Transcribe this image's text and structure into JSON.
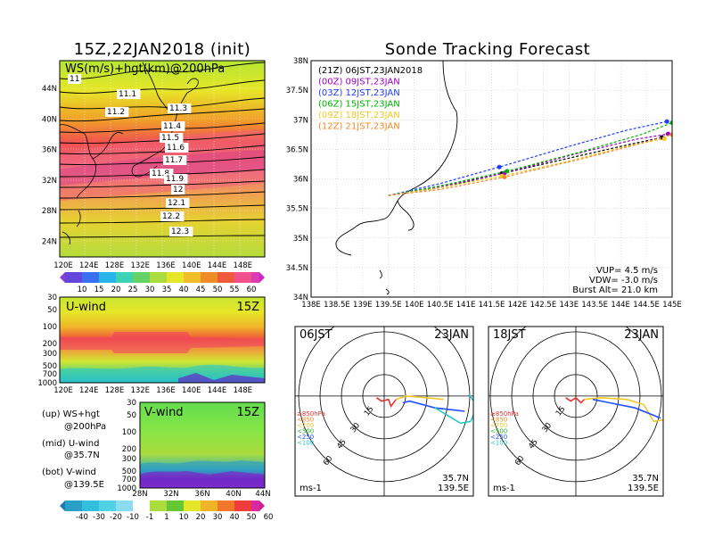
{
  "colors": {
    "accent": "#000000"
  },
  "map_panel": {
    "title": "15Z,22JAN2018 (init)",
    "label": "WS(m/s)+hgt(km)@200hPa",
    "x_ticks": [
      "120E",
      "124E",
      "128E",
      "132E",
      "136E",
      "140E",
      "144E",
      "148E"
    ],
    "y_ticks": [
      "44N",
      "40N",
      "36N",
      "32N",
      "28N",
      "24N"
    ],
    "contour_labels": [
      "11",
      "11.1",
      "11.2",
      "11.3",
      "11.4",
      "11.5",
      "11.6",
      "11.7",
      "11.8",
      "11.9",
      "12",
      "12.1",
      "12.2",
      "12.3"
    ],
    "colorbar_ticks": [
      "10",
      "15",
      "20",
      "25",
      "30",
      "35",
      "40",
      "45",
      "50",
      "55",
      "60"
    ]
  },
  "u_panel": {
    "label": "U-wind",
    "time": "15Z",
    "y_ticks": [
      "30",
      "50",
      "100",
      "200",
      "300",
      "500",
      "700",
      "1000"
    ],
    "x_ticks": [
      "120E",
      "124E",
      "128E",
      "132E",
      "136E",
      "140E",
      "144E",
      "148E"
    ]
  },
  "v_panel": {
    "label": "V-wind",
    "time": "15Z",
    "y_ticks": [
      "30",
      "50",
      "100",
      "200",
      "300",
      "500",
      "700",
      "1000"
    ],
    "x_ticks": [
      "28N",
      "32N",
      "36N",
      "40N",
      "44N"
    ],
    "colorbar_ticks": [
      "-40",
      "-30",
      "-20",
      "-10",
      "-1",
      "1",
      "10",
      "20",
      "30",
      "40",
      "50",
      "60"
    ]
  },
  "legend_text": {
    "line1": "(up) WS+hgt",
    "line2": "@200hPa",
    "line3": "(mid) U-wind",
    "line4": "@35.7N",
    "line5": "(bot) V-wind",
    "line6": "@139.5E"
  },
  "track_panel": {
    "title": "Sonde Tracking Forecast",
    "x_ticks": [
      "138E",
      "138.5E",
      "139E",
      "139.5E",
      "140E",
      "140.5E",
      "141E",
      "141.5E",
      "142E",
      "142.5E",
      "143E",
      "143.5E",
      "144E",
      "144.5E",
      "145E"
    ],
    "y_ticks": [
      "38N",
      "37.5N",
      "37N",
      "36.5N",
      "36N",
      "35.5N",
      "35N",
      "34.5N",
      "34N"
    ],
    "legend": [
      {
        "label": "(21Z) 06JST,23JAN2018",
        "color": "#000000"
      },
      {
        "label": "(00Z) 09JST,23JAN",
        "color": "#a000c8"
      },
      {
        "label": "(03Z) 12JST,23JAN",
        "color": "#1e3cff"
      },
      {
        "label": "(06Z) 15JST,23JAN",
        "color": "#00b400"
      },
      {
        "label": "(09Z) 18JST,23JAN",
        "color": "#f0c828"
      },
      {
        "label": "(12Z) 21JST,23JAN",
        "color": "#f08c28"
      }
    ],
    "vup": "VUP= 4.5 m/s",
    "vdw": "VDW= -3.0 m/s",
    "burst": "Burst Alt= 21.0 km"
  },
  "hodographs": [
    {
      "left": "06JST",
      "right": "23JAN",
      "unit": "ms-1",
      "lat": "35.7N",
      "lon": "139.5E",
      "rings": [
        "15",
        "30",
        "45",
        "60"
      ],
      "levels": [
        "≥850hPa",
        "<850",
        "<700",
        "<500",
        "<250",
        "<100"
      ]
    },
    {
      "left": "18JST",
      "right": "23JAN",
      "unit": "ms-1",
      "lat": "35.7N",
      "lon": "139.5E",
      "rings": [
        "15",
        "30",
        "45",
        "60"
      ],
      "levels": [
        "≥850hPa",
        "<850",
        "<700",
        "<500",
        "<250",
        "<100"
      ]
    }
  ],
  "chart_data": [
    {
      "type": "scatter",
      "title": "Sonde Tracking Forecast",
      "xlim": [
        138,
        145
      ],
      "ylim": [
        34,
        38
      ],
      "launch": {
        "x": 139.5,
        "y": 35.72
      },
      "series": [
        {
          "name": "(21Z) 06JST,23JAN2018",
          "color": "#000000",
          "x": [
            139.5,
            140.5,
            141.7,
            143.0,
            144.0,
            144.8
          ],
          "y": [
            35.72,
            35.85,
            36.09,
            36.35,
            36.55,
            36.7
          ]
        },
        {
          "name": "(00Z) 09JST,23JAN",
          "color": "#a000c8",
          "x": [
            139.5,
            140.5,
            141.75,
            143.2,
            144.3,
            144.92
          ],
          "y": [
            35.72,
            35.87,
            36.1,
            36.44,
            36.67,
            36.76
          ]
        },
        {
          "name": "(03Z) 12JST,23JAN",
          "color": "#1e3cff",
          "x": [
            139.5,
            140.5,
            141.65,
            143.0,
            144.1,
            144.9
          ],
          "y": [
            35.72,
            35.92,
            36.2,
            36.55,
            36.82,
            36.97
          ]
        },
        {
          "name": "(06Z) 15JST,23JAN",
          "color": "#00b400",
          "x": [
            139.5,
            140.5,
            141.8,
            143.2,
            144.4,
            145.0
          ],
          "y": [
            35.72,
            35.88,
            36.13,
            36.45,
            36.75,
            36.95
          ]
        },
        {
          "name": "(09Z) 18JST,23JAN",
          "color": "#f0c828",
          "x": [
            139.5,
            140.5,
            141.7,
            143.0,
            144.1,
            144.85
          ],
          "y": [
            35.72,
            35.85,
            36.05,
            36.3,
            36.55,
            36.68
          ]
        },
        {
          "name": "(12Z) 21JST,23JAN",
          "color": "#f08c28",
          "x": [
            139.5,
            140.5,
            141.75,
            143.3,
            144.4,
            145.0
          ],
          "y": [
            35.72,
            35.82,
            36.03,
            36.35,
            36.6,
            36.75
          ]
        }
      ]
    },
    {
      "type": "heatmap",
      "title": "15Z,22JAN2018 (init)",
      "xlim": [
        120,
        150
      ],
      "ylim": [
        22,
        47
      ],
      "contour_levels_km": [
        11,
        11.1,
        11.2,
        11.3,
        11.4,
        11.5,
        11.6,
        11.7,
        11.8,
        11.9,
        12,
        12.1,
        12.2,
        12.3
      ]
    }
  ]
}
